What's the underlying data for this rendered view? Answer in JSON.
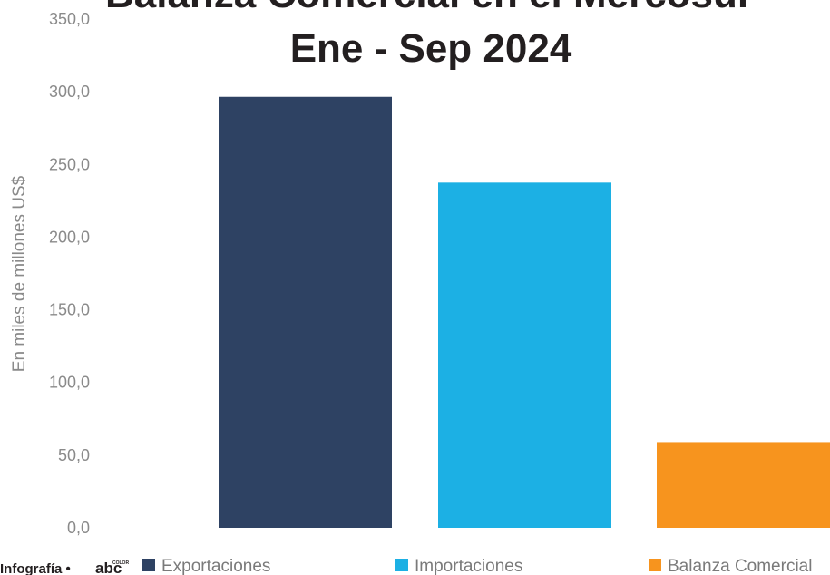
{
  "chart_data": {
    "type": "bar",
    "title_lines": [
      "Balanza Comercial en el Mercosur",
      "Ene - Sep 2024"
    ],
    "ylabel": "En miles de millones US$",
    "xlabel": "",
    "ylim": [
      0,
      350
    ],
    "yticks": [
      "0,0",
      "50,0",
      "100,0",
      "150,0",
      "200,0",
      "250,0",
      "300,0",
      "350,0"
    ],
    "grid": false,
    "legend_position": "bottom",
    "series": [
      {
        "name": "Exportaciones",
        "value": 296.5,
        "color": "#2e4263"
      },
      {
        "name": "Importaciones",
        "value": 237.5,
        "color": "#1cb0e4"
      },
      {
        "name": "Balanza Comercial",
        "value": 59.0,
        "color": "#f7941e"
      }
    ]
  },
  "credit": {
    "label": "Infografía •",
    "logo_text": "abc",
    "logo_small": "COLOR"
  }
}
